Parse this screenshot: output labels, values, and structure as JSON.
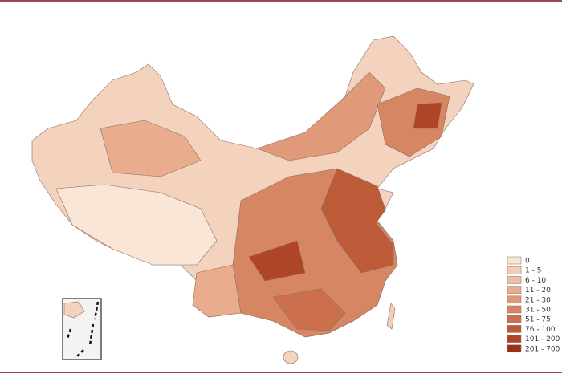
{
  "legend": {
    "items": [
      {
        "label": "0",
        "color": "#fae6d6"
      },
      {
        "label": "1 - 5",
        "color": "#f3cdb5"
      },
      {
        "label": "6 - 10",
        "color": "#efbfa3"
      },
      {
        "label": "11 - 20",
        "color": "#e9ad8e"
      },
      {
        "label": "21 - 30",
        "color": "#e19a79"
      },
      {
        "label": "31 - 50",
        "color": "#d78664"
      },
      {
        "label": "51 - 75",
        "color": "#cb6f4d"
      },
      {
        "label": "76 - 100",
        "color": "#bd5a38"
      },
      {
        "label": "101 - 200",
        "color": "#ad4526"
      },
      {
        "label": "201 - 700",
        "color": "#983217"
      }
    ]
  }
}
